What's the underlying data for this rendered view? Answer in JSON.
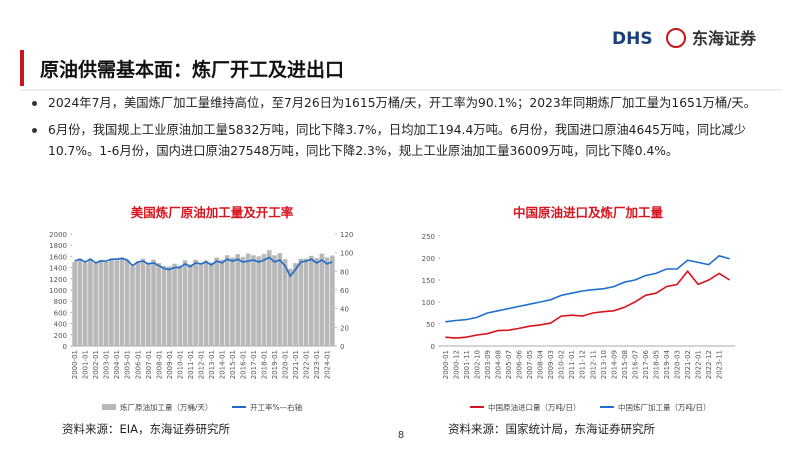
{
  "header": {
    "logo": "DHS",
    "company": "东海证券"
  },
  "title": "原油供需基本面：炼厂开工及进出口",
  "bullets": [
    "2024年7月，美国炼厂加工量维持高位，至7月26日为1615万桶/天，开工率为90.1%；2023年同期炼厂加工量为1651万桶/天。",
    "6月份，我国规上工业原油加工量5832万吨，同比下降3.7%，日均加工194.4万吨。6月份，我国进口原油4645万吨，同比减少10.7%。1-6月份，国内进口原油27548万吨，同比下降2.3%，规上工业原油加工量36009万吨，同比下降0.4%。"
  ],
  "chart_data": [
    {
      "type": "bar",
      "title": "美国炼厂原油加工量及开工率",
      "categories": [
        "2000-01",
        null,
        "2001-01",
        null,
        "2002-01",
        null,
        "2003-01",
        null,
        "2004-01",
        null,
        "2005-01",
        null,
        "2006-01",
        null,
        "2007-01",
        null,
        "2008-01",
        null,
        "2009-01",
        null,
        "2010-01",
        null,
        "2011-01",
        null,
        "2012-01",
        null,
        "2013-01",
        null,
        "2014-01",
        null,
        "2015-01",
        null,
        "2016-01",
        null,
        "2017-01",
        null,
        "2018-01",
        null,
        "2019-01",
        null,
        "2020-01",
        null,
        "2021-01",
        null,
        "2022-01",
        null,
        "2023-01",
        null,
        "2024-01",
        null
      ],
      "series": [
        {
          "name": "炼厂原油加工量（万桶/天）",
          "color": "#b8b8b8",
          "values": [
            1500,
            1560,
            1490,
            1560,
            1480,
            1540,
            1500,
            1560,
            1530,
            1580,
            1540,
            1420,
            1510,
            1560,
            1490,
            1540,
            1480,
            1430,
            1420,
            1470,
            1440,
            1530,
            1460,
            1540,
            1470,
            1530,
            1490,
            1580,
            1540,
            1620,
            1580,
            1640,
            1590,
            1650,
            1620,
            1600,
            1640,
            1710,
            1620,
            1660,
            1550,
            1380,
            1480,
            1560,
            1560,
            1610,
            1570,
            1650,
            1580,
            1615
          ]
        },
        {
          "name": "开工率%—右轴",
          "color": "#1f6bc5",
          "axis": "y2",
          "values": [
            91,
            93,
            90,
            93,
            89,
            91,
            91,
            93,
            93,
            94,
            92,
            86,
            90,
            91,
            88,
            89,
            86,
            83,
            82,
            84,
            84,
            88,
            85,
            89,
            88,
            90,
            87,
            91,
            89,
            93,
            91,
            93,
            90,
            91,
            92,
            90,
            92,
            95,
            90,
            92,
            86,
            75,
            82,
            90,
            91,
            93,
            89,
            92,
            88,
            90.1
          ]
        }
      ],
      "ylim": [
        0,
        2000
      ],
      "yticks": [
        0,
        200,
        400,
        600,
        800,
        1000,
        1200,
        1400,
        1600,
        1800,
        2000
      ],
      "y2lim": [
        0,
        120
      ],
      "y2ticks": [
        0,
        20,
        40,
        60,
        80,
        100,
        120
      ],
      "source": "资料来源：EIA，东海证券研究所"
    },
    {
      "type": "line",
      "title": "中国原油进口及炼厂加工量",
      "categories": [
        "2000-01",
        "2000-12",
        "2001-11",
        "2002-10",
        "2003-09",
        "2004-08",
        "2005-07",
        "2006-06",
        "2007-05",
        "2008-04",
        "2009-03",
        "2010-02",
        "2011-01",
        "2011-12",
        "2012-11",
        "2013-10",
        "2014-09",
        "2015-08",
        "2016-07",
        "2017-06",
        "2018-05",
        "2019-04",
        "2020-03",
        "2021-02",
        "2022-01",
        "2022-12",
        "2023-11",
        null
      ],
      "series": [
        {
          "name": "中国原油进口量（万吨/日）",
          "color": "#d9141e",
          "values": [
            20,
            18,
            20,
            25,
            28,
            35,
            36,
            40,
            45,
            48,
            52,
            68,
            70,
            68,
            75,
            78,
            80,
            88,
            100,
            115,
            120,
            135,
            140,
            170,
            140,
            150,
            165,
            150
          ]
        },
        {
          "name": "中国炼厂加工量（万吨/日）",
          "color": "#1f6fd0",
          "values": [
            55,
            58,
            60,
            65,
            75,
            80,
            85,
            90,
            95,
            100,
            105,
            115,
            120,
            125,
            128,
            130,
            135,
            145,
            150,
            160,
            165,
            175,
            175,
            195,
            190,
            185,
            205,
            198
          ]
        }
      ],
      "ylim": [
        0,
        250
      ],
      "yticks": [
        0,
        50,
        100,
        150,
        200,
        250
      ],
      "source": "资料来源：国家统计局，东海证券研究所"
    }
  ],
  "page_number": "8"
}
